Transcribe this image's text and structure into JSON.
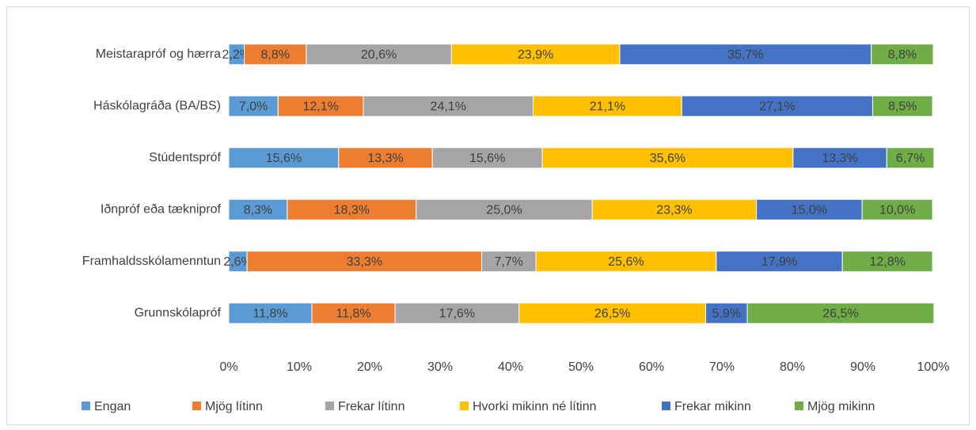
{
  "chart_data": {
    "type": "stacked_bar_horizontal",
    "categories": [
      "Meistarapróf og hærra",
      "Háskólagráða (BA/BS)",
      "Stúdentspróf",
      "Iðnpróf eða tækniprof",
      "Framhaldsskólamenntun",
      "Grunnskólapróf"
    ],
    "series": [
      {
        "name": "Engan",
        "color": "#5b9bd5",
        "values": [
          2.2,
          7.0,
          15.6,
          8.3,
          2.6,
          11.8
        ],
        "value_labels": [
          "2,2%",
          "7,0%",
          "15,6%",
          "8,3%",
          "2,6%",
          "11,8%"
        ]
      },
      {
        "name": "Mjög lítinn",
        "color": "#ed7d31",
        "values": [
          8.8,
          12.1,
          13.3,
          18.3,
          33.3,
          11.8
        ],
        "value_labels": [
          "8,8%",
          "12,1%",
          "13,3%",
          "18,3%",
          "33,3%",
          "11,8%"
        ]
      },
      {
        "name": "Frekar lítinn",
        "color": "#a5a5a5",
        "values": [
          20.6,
          24.1,
          15.6,
          25.0,
          7.7,
          17.6
        ],
        "value_labels": [
          "20,6%",
          "24,1%",
          "15,6%",
          "25,0%",
          "7,7%",
          "17,6%"
        ]
      },
      {
        "name": "Hvorki mikinn né lítinn",
        "color": "#ffc000",
        "values": [
          23.9,
          21.1,
          35.6,
          23.3,
          25.6,
          26.5
        ],
        "value_labels": [
          "23,9%",
          "21,1%",
          "35,6%",
          "23,3%",
          "25,6%",
          "26,5%"
        ]
      },
      {
        "name": "Frekar mikinn",
        "color": "#4472c4",
        "values": [
          35.7,
          27.1,
          13.3,
          15.0,
          17.9,
          5.9
        ],
        "value_labels": [
          "35,7%",
          "27,1%",
          "13,3%",
          "15,0%",
          "17,9%",
          "5,9%"
        ]
      },
      {
        "name": "Mjög mikinn",
        "color": "#70ad47",
        "values": [
          8.8,
          8.5,
          6.7,
          10.0,
          12.8,
          26.5
        ],
        "value_labels": [
          "8,8%",
          "8,5%",
          "6,7%",
          "10,0%",
          "12,8%",
          "26,5%"
        ]
      }
    ],
    "xlim": [
      0,
      100
    ],
    "xticks": [
      {
        "value": 0,
        "label": "0%"
      },
      {
        "value": 10,
        "label": "10%"
      },
      {
        "value": 20,
        "label": "20%"
      },
      {
        "value": 30,
        "label": "30%"
      },
      {
        "value": 40,
        "label": "40%"
      },
      {
        "value": 50,
        "label": "50%"
      },
      {
        "value": 60,
        "label": "60%"
      },
      {
        "value": 70,
        "label": "70%"
      },
      {
        "value": 80,
        "label": "80%"
      },
      {
        "value": 90,
        "label": "90%"
      },
      {
        "value": 100,
        "label": "100%"
      }
    ],
    "legend": "bottom"
  }
}
